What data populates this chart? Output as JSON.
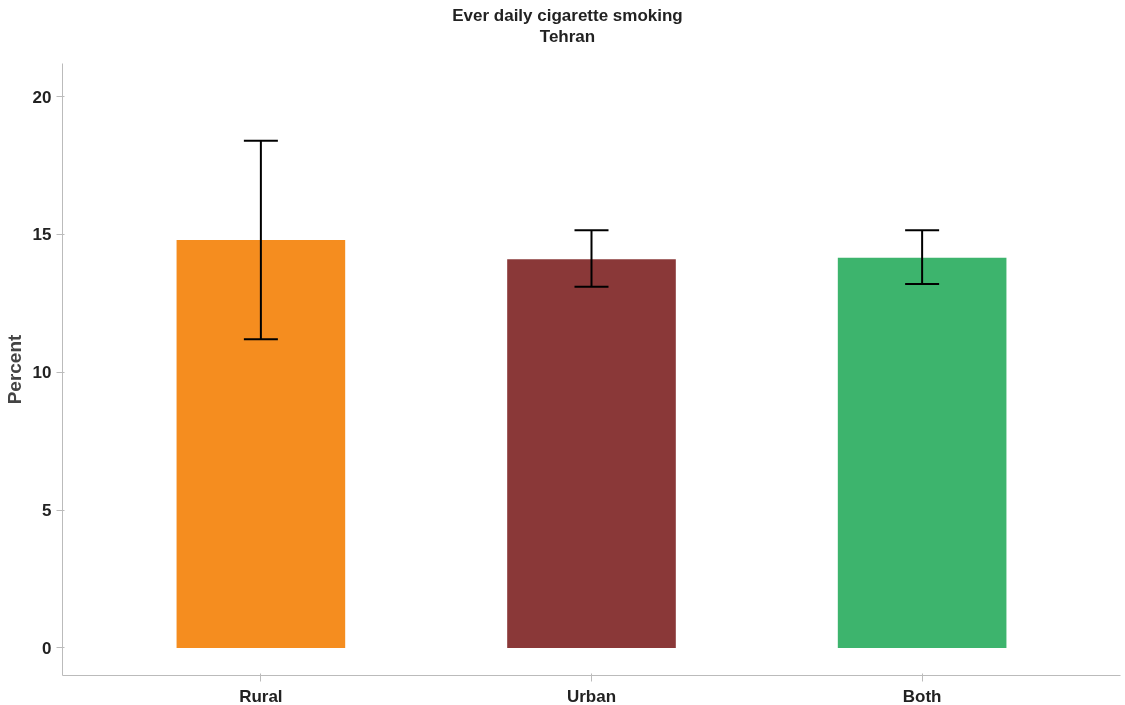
{
  "chart_data": {
    "type": "bar",
    "title": "Ever daily cigarette smoking\nTehran",
    "ylabel": "Percent",
    "categories": [
      "Rural",
      "Urban",
      "Both"
    ],
    "values": [
      14.8,
      14.1,
      14.15
    ],
    "colors": [
      "#f58d1f",
      "#8a3838",
      "#3db46d"
    ],
    "errors": [
      [
        11.2,
        18.4
      ],
      [
        13.1,
        15.15
      ],
      [
        13.2,
        15.15
      ]
    ],
    "ylim": [
      -1.0,
      21.2
    ],
    "yticks": [
      0,
      5,
      10,
      15,
      20
    ],
    "grid": false
  }
}
